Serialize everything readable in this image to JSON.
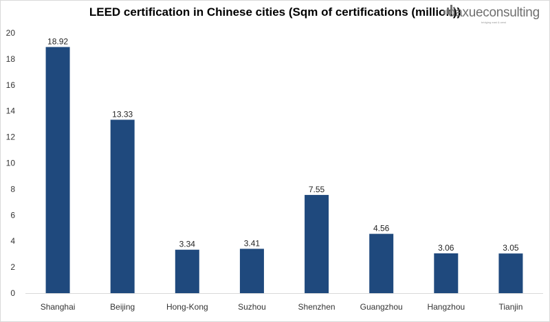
{
  "chart_data": {
    "type": "bar",
    "title": "LEED certification in Chinese cities (Sqm of certifications (million))",
    "categories": [
      "Shanghai",
      "Beijing",
      "Hong-Kong",
      "Suzhou",
      "Shenzhen",
      "Guangzhou",
      "Hangzhou",
      "Tianjin"
    ],
    "values": [
      18.92,
      13.33,
      3.34,
      3.41,
      7.55,
      4.56,
      3.06,
      3.05
    ],
    "value_labels": [
      "18.92",
      "13.33",
      "3.34",
      "3.41",
      "7.55",
      "4.56",
      "3.06",
      "3.05"
    ],
    "xlabel": "",
    "ylabel": "",
    "ylim": [
      0,
      20
    ],
    "yticks": [
      0,
      2,
      4,
      6,
      8,
      10,
      12,
      14,
      16,
      18,
      20
    ],
    "grid": false,
    "legend": "none",
    "bar_color": "#1f497d"
  },
  "logo": {
    "part1": "daxue",
    "part2": "u",
    "part3": "consulting",
    "tagline": "bridging east & west"
  }
}
